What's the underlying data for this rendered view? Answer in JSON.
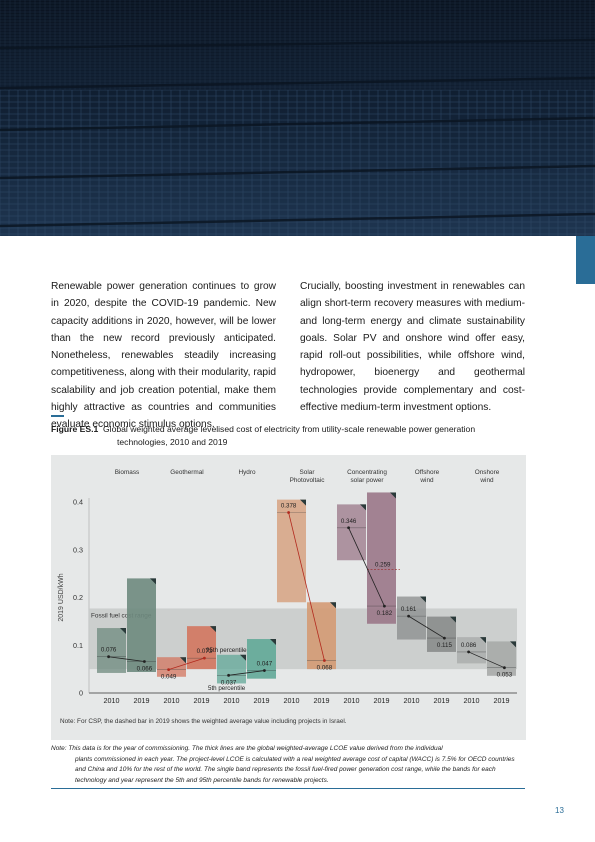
{
  "intro": {
    "left_paragraph": "Renewable power generation continues to grow in 2020, despite the COVID-19 pandemic. New capacity additions in 2020, however, will be lower than the new record previously anticipated. Nonetheless, renewables steadily increasing competitiveness, along with their modularity, rapid scalability and job creation potential, make them highly attractive as countries and communities evaluate economic stimulus options.",
    "right_paragraph": "Crucially, boosting investment in renewables can align short-term recovery measures with medium- and long-term energy and climate sustainability goals. Solar PV and onshore wind offer easy, rapid roll-out possibilities, while offshore wind, hydropower, bioenergy and geothermal technologies provide complementary and cost-effective medium-term investment options."
  },
  "figure": {
    "label": "Figure ES.1",
    "title_line1": "Global weighted average levelised cost of electricity from utility-scale renewable power generation",
    "title_line2": "technologies, 2010 and 2019",
    "note": "Note: For CSP, the dashed bar in 2019 shows the weighted average value including projects in Israel."
  },
  "bottom_note": {
    "first_line": "Note: This data is for the year of commissioning. The thick lines are the global weighted-average LCOE value derived from the individual",
    "rest": "plants commissioned in each year. The project-level LCOE is calculated with a real weighted average cost of capital (WACC) is 7.5% for OECD countries and China and 10% for the rest of the world. The single band represents the fossil fuel-fired power generation cost range, while the bands for each technology and year represent the 5th and 95th percentile bands for renewable projects."
  },
  "page_number": "13",
  "chart_data": {
    "type": "range-bar",
    "ylabel": "2019 USD/kWh",
    "ylim": [
      0,
      0.45
    ],
    "yticks": [
      "0",
      "0.1",
      "0.2",
      "0.3",
      "0.4"
    ],
    "fossil_band": {
      "label": "Fossil fuel cost range",
      "min": 0.05,
      "max": 0.177
    },
    "percentile_labels": {
      "p95": "95th percentile",
      "p5": "5th percentile"
    },
    "technologies": [
      {
        "name": "Biomass",
        "color": "#6e8a7e",
        "years": [
          {
            "year": "2010",
            "value": 0.076,
            "value_label": "0.076",
            "p5": 0.042,
            "p95": 0.136
          },
          {
            "year": "2019",
            "value": 0.066,
            "value_label": "0.066",
            "p5": 0.044,
            "p95": 0.24
          }
        ]
      },
      {
        "name": "Geothermal",
        "color": "#d3765f",
        "years": [
          {
            "year": "2010",
            "value": 0.049,
            "value_label": "0.049",
            "p5": 0.034,
            "p95": 0.075
          },
          {
            "year": "2019",
            "value": 0.073,
            "value_label": "0.073",
            "p5": 0.05,
            "p95": 0.14
          }
        ]
      },
      {
        "name": "Hydro",
        "color": "#62a898",
        "years": [
          {
            "year": "2010",
            "value": 0.037,
            "value_label": "0.037",
            "p5": 0.02,
            "p95": 0.08
          },
          {
            "year": "2019",
            "value": 0.047,
            "value_label": "0.047",
            "p5": 0.03,
            "p95": 0.113
          }
        ]
      },
      {
        "name": "Solar Photovoltaic",
        "line1": "Solar",
        "line2": "Photovoltaic",
        "color": "#d49a74",
        "years": [
          {
            "year": "2010",
            "value": 0.378,
            "value_label": "0.378",
            "p5": 0.19,
            "p95": 0.405
          },
          {
            "year": "2019",
            "value": 0.068,
            "value_label": "0.068",
            "p5": 0.05,
            "p95": 0.19
          }
        ]
      },
      {
        "name": "Concentrating solar power",
        "line1": "Concentrating",
        "line2": "solar power",
        "color": "#9a7788",
        "years": [
          {
            "year": "2010",
            "value": 0.346,
            "value_label": "0.346",
            "p5": 0.278,
            "p95": 0.395
          },
          {
            "year": "2019",
            "value": 0.182,
            "value_label": "0.182",
            "p5": 0.145,
            "p95": 0.42,
            "dashed_value": 0.259,
            "dashed_label": "0.259"
          }
        ]
      },
      {
        "name": "Offshore wind",
        "line1": "Offshore",
        "line2": "wind",
        "color": "#8a8c8c",
        "years": [
          {
            "year": "2010",
            "value": 0.161,
            "value_label": "0.161",
            "p5": 0.112,
            "p95": 0.202
          },
          {
            "year": "2019",
            "value": 0.115,
            "value_label": "0.115",
            "p5": 0.086,
            "p95": 0.16
          }
        ]
      },
      {
        "name": "Onshore wind",
        "line1": "Onshore",
        "line2": "wind",
        "color": "#a7aaa8",
        "years": [
          {
            "year": "2010",
            "value": 0.086,
            "value_label": "0.086",
            "p5": 0.062,
            "p95": 0.117
          },
          {
            "year": "2019",
            "value": 0.053,
            "value_label": "0.053",
            "p5": 0.036,
            "p95": 0.108
          }
        ]
      }
    ]
  }
}
